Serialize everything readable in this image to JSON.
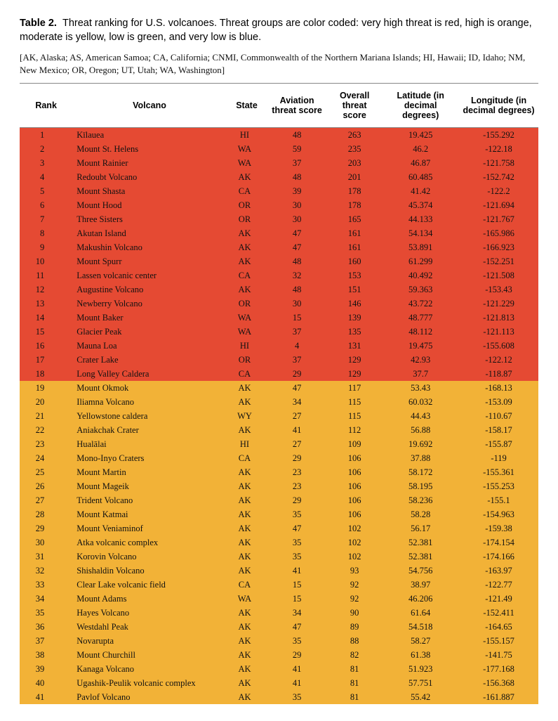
{
  "caption": {
    "label": "Table 2.",
    "text": "Threat ranking for U.S. volcanoes. Threat groups are color coded: very high threat is red, high is orange, moderate is yellow, low is green, and very low is blue."
  },
  "legend": "[AK, Alaska; AS, American Samoa; CA, California; CNMI, Commonwealth of the Northern Mariana Islands; HI, Hawaii; ID, Idaho; NM, New Mexico; OR, Oregon; UT, Utah; WA, Washington]",
  "columns": [
    "Rank",
    "Volcano",
    "State",
    "Aviation threat score",
    "Overall threat score",
    "Latitude (in decimal degrees)",
    "Longitude (in decimal degrees)"
  ],
  "colors": {
    "veryhigh": "#e54a33",
    "high": "#f2b237"
  },
  "rows": [
    {
      "rank": 1,
      "volcano": "Kīlauea",
      "state": "HI",
      "av": 48,
      "ov": 263,
      "lat": "19.425",
      "lon": "-155.292",
      "t": "veryhigh"
    },
    {
      "rank": 2,
      "volcano": "Mount St. Helens",
      "state": "WA",
      "av": 59,
      "ov": 235,
      "lat": "46.2",
      "lon": "-122.18",
      "t": "veryhigh"
    },
    {
      "rank": 3,
      "volcano": "Mount Rainier",
      "state": "WA",
      "av": 37,
      "ov": 203,
      "lat": "46.87",
      "lon": "-121.758",
      "t": "veryhigh"
    },
    {
      "rank": 4,
      "volcano": "Redoubt Volcano",
      "state": "AK",
      "av": 48,
      "ov": 201,
      "lat": "60.485",
      "lon": "-152.742",
      "t": "veryhigh"
    },
    {
      "rank": 5,
      "volcano": "Mount Shasta",
      "state": "CA",
      "av": 39,
      "ov": 178,
      "lat": "41.42",
      "lon": "-122.2",
      "t": "veryhigh"
    },
    {
      "rank": 6,
      "volcano": "Mount Hood",
      "state": "OR",
      "av": 30,
      "ov": 178,
      "lat": "45.374",
      "lon": "-121.694",
      "t": "veryhigh"
    },
    {
      "rank": 7,
      "volcano": "Three Sisters",
      "state": "OR",
      "av": 30,
      "ov": 165,
      "lat": "44.133",
      "lon": "-121.767",
      "t": "veryhigh"
    },
    {
      "rank": 8,
      "volcano": "Akutan Island",
      "state": "AK",
      "av": 47,
      "ov": 161,
      "lat": "54.134",
      "lon": "-165.986",
      "t": "veryhigh"
    },
    {
      "rank": 9,
      "volcano": "Makushin Volcano",
      "state": "AK",
      "av": 47,
      "ov": 161,
      "lat": "53.891",
      "lon": "-166.923",
      "t": "veryhigh"
    },
    {
      "rank": 10,
      "volcano": "Mount Spurr",
      "state": "AK",
      "av": 48,
      "ov": 160,
      "lat": "61.299",
      "lon": "-152.251",
      "t": "veryhigh"
    },
    {
      "rank": 11,
      "volcano": "Lassen volcanic center",
      "state": "CA",
      "av": 32,
      "ov": 153,
      "lat": "40.492",
      "lon": "-121.508",
      "t": "veryhigh"
    },
    {
      "rank": 12,
      "volcano": "Augustine Volcano",
      "state": "AK",
      "av": 48,
      "ov": 151,
      "lat": "59.363",
      "lon": "-153.43",
      "t": "veryhigh"
    },
    {
      "rank": 13,
      "volcano": "Newberry Volcano",
      "state": "OR",
      "av": 30,
      "ov": 146,
      "lat": "43.722",
      "lon": "-121.229",
      "t": "veryhigh"
    },
    {
      "rank": 14,
      "volcano": "Mount Baker",
      "state": "WA",
      "av": 15,
      "ov": 139,
      "lat": "48.777",
      "lon": "-121.813",
      "t": "veryhigh"
    },
    {
      "rank": 15,
      "volcano": "Glacier Peak",
      "state": "WA",
      "av": 37,
      "ov": 135,
      "lat": "48.112",
      "lon": "-121.113",
      "t": "veryhigh"
    },
    {
      "rank": 16,
      "volcano": "Mauna Loa",
      "state": "HI",
      "av": 4,
      "ov": 131,
      "lat": "19.475",
      "lon": "-155.608",
      "t": "veryhigh"
    },
    {
      "rank": 17,
      "volcano": "Crater Lake",
      "state": "OR",
      "av": 37,
      "ov": 129,
      "lat": "42.93",
      "lon": "-122.12",
      "t": "veryhigh"
    },
    {
      "rank": 18,
      "volcano": "Long Valley Caldera",
      "state": "CA",
      "av": 29,
      "ov": 129,
      "lat": "37.7",
      "lon": "-118.87",
      "t": "veryhigh"
    },
    {
      "rank": 19,
      "volcano": "Mount Okmok",
      "state": "AK",
      "av": 47,
      "ov": 117,
      "lat": "53.43",
      "lon": "-168.13",
      "t": "high"
    },
    {
      "rank": 20,
      "volcano": "Iliamna Volcano",
      "state": "AK",
      "av": 34,
      "ov": 115,
      "lat": "60.032",
      "lon": "-153.09",
      "t": "high"
    },
    {
      "rank": 21,
      "volcano": "Yellowstone caldera",
      "state": "WY",
      "av": 27,
      "ov": 115,
      "lat": "44.43",
      "lon": "-110.67",
      "t": "high"
    },
    {
      "rank": 22,
      "volcano": "Aniakchak Crater",
      "state": "AK",
      "av": 41,
      "ov": 112,
      "lat": "56.88",
      "lon": "-158.17",
      "t": "high"
    },
    {
      "rank": 23,
      "volcano": "Hualālai",
      "state": "HI",
      "av": 27,
      "ov": 109,
      "lat": "19.692",
      "lon": "-155.87",
      "t": "high"
    },
    {
      "rank": 24,
      "volcano": "Mono-Inyo Craters",
      "state": "CA",
      "av": 29,
      "ov": 106,
      "lat": "37.88",
      "lon": "-119",
      "t": "high"
    },
    {
      "rank": 25,
      "volcano": "Mount Martin",
      "state": "AK",
      "av": 23,
      "ov": 106,
      "lat": "58.172",
      "lon": "-155.361",
      "t": "high"
    },
    {
      "rank": 26,
      "volcano": "Mount Mageik",
      "state": "AK",
      "av": 23,
      "ov": 106,
      "lat": "58.195",
      "lon": "-155.253",
      "t": "high"
    },
    {
      "rank": 27,
      "volcano": "Trident Volcano",
      "state": "AK",
      "av": 29,
      "ov": 106,
      "lat": "58.236",
      "lon": "-155.1",
      "t": "high"
    },
    {
      "rank": 28,
      "volcano": "Mount Katmai",
      "state": "AK",
      "av": 35,
      "ov": 106,
      "lat": "58.28",
      "lon": "-154.963",
      "t": "high"
    },
    {
      "rank": 29,
      "volcano": "Mount Veniaminof",
      "state": "AK",
      "av": 47,
      "ov": 102,
      "lat": "56.17",
      "lon": "-159.38",
      "t": "high"
    },
    {
      "rank": 30,
      "volcano": "Atka volcanic complex",
      "state": "AK",
      "av": 35,
      "ov": 102,
      "lat": "52.381",
      "lon": "-174.154",
      "t": "high"
    },
    {
      "rank": 31,
      "volcano": "Korovin Volcano",
      "state": "AK",
      "av": 35,
      "ov": 102,
      "lat": "52.381",
      "lon": "-174.166",
      "t": "high"
    },
    {
      "rank": 32,
      "volcano": "Shishaldin Volcano",
      "state": "AK",
      "av": 41,
      "ov": 93,
      "lat": "54.756",
      "lon": "-163.97",
      "t": "high"
    },
    {
      "rank": 33,
      "volcano": "Clear Lake volcanic field",
      "state": "CA",
      "av": 15,
      "ov": 92,
      "lat": "38.97",
      "lon": "-122.77",
      "t": "high"
    },
    {
      "rank": 34,
      "volcano": "Mount Adams",
      "state": "WA",
      "av": 15,
      "ov": 92,
      "lat": "46.206",
      "lon": "-121.49",
      "t": "high"
    },
    {
      "rank": 35,
      "volcano": "Hayes Volcano",
      "state": "AK",
      "av": 34,
      "ov": 90,
      "lat": "61.64",
      "lon": "-152.411",
      "t": "high"
    },
    {
      "rank": 36,
      "volcano": "Westdahl Peak",
      "state": "AK",
      "av": 47,
      "ov": 89,
      "lat": "54.518",
      "lon": "-164.65",
      "t": "high"
    },
    {
      "rank": 37,
      "volcano": "Novarupta",
      "state": "AK",
      "av": 35,
      "ov": 88,
      "lat": "58.27",
      "lon": "-155.157",
      "t": "high"
    },
    {
      "rank": 38,
      "volcano": "Mount Churchill",
      "state": "AK",
      "av": 29,
      "ov": 82,
      "lat": "61.38",
      "lon": "-141.75",
      "t": "high"
    },
    {
      "rank": 39,
      "volcano": "Kanaga Volcano",
      "state": "AK",
      "av": 41,
      "ov": 81,
      "lat": "51.923",
      "lon": "-177.168",
      "t": "high"
    },
    {
      "rank": 40,
      "volcano": "Ugashik-Peulik volcanic complex",
      "state": "AK",
      "av": 41,
      "ov": 81,
      "lat": "57.751",
      "lon": "-156.368",
      "t": "high"
    },
    {
      "rank": 41,
      "volcano": "Pavlof Volcano",
      "state": "AK",
      "av": 35,
      "ov": 81,
      "lat": "55.42",
      "lon": "-161.887",
      "t": "high"
    }
  ]
}
